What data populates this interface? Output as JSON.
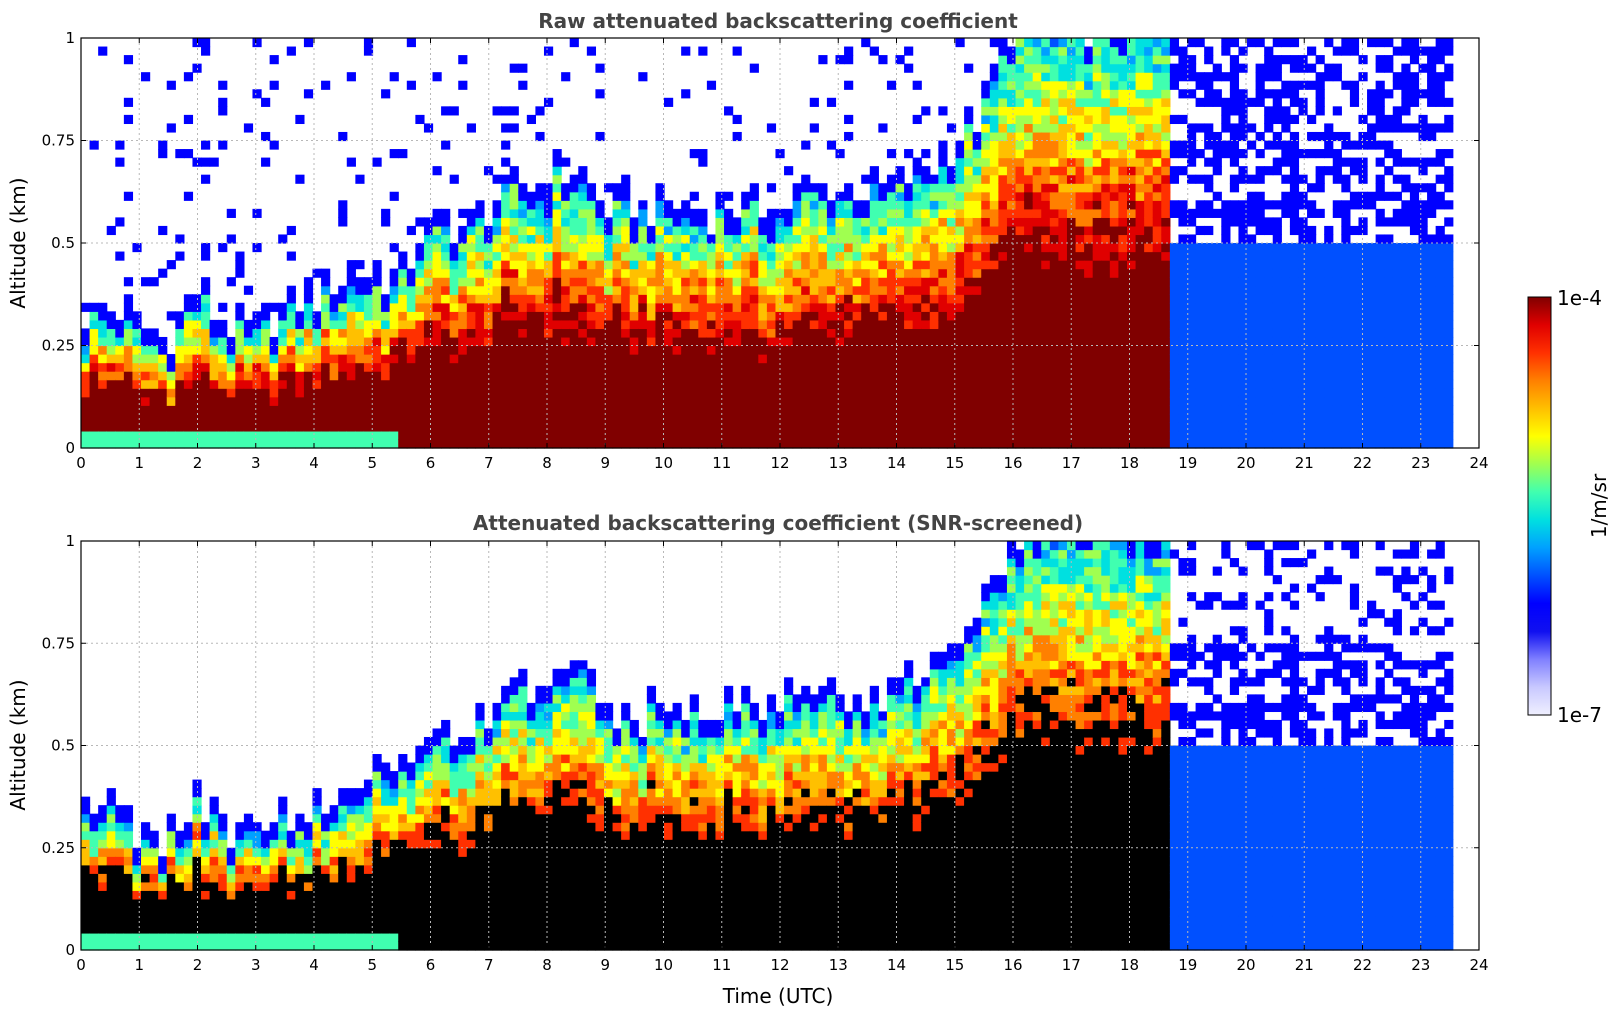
{
  "chart_data": [
    {
      "type": "heatmap",
      "title": "Raw attenuated backscattering coefficient",
      "xlabel": "",
      "ylabel": "Altitude (km)",
      "xlim": [
        0,
        24
      ],
      "ylim": [
        0,
        1
      ],
      "x_ticks": [
        "0",
        "1",
        "2",
        "3",
        "4",
        "5",
        "6",
        "7",
        "8",
        "9",
        "10",
        "11",
        "12",
        "13",
        "14",
        "15",
        "16",
        "17",
        "18",
        "19",
        "20",
        "21",
        "22",
        "23",
        "24"
      ],
      "y_ticks": [
        "0",
        "0.25",
        "0.5",
        "0.75",
        "1"
      ],
      "grid": true,
      "screened": false,
      "data_end_hour": 23.55,
      "boundary_layer_top_km": [
        [
          0,
          0.28
        ],
        [
          0.3,
          0.3
        ],
        [
          0.7,
          0.3
        ],
        [
          1,
          0.25
        ],
        [
          1.5,
          0.23
        ],
        [
          2,
          0.35
        ],
        [
          2.5,
          0.26
        ],
        [
          3,
          0.25
        ],
        [
          3.5,
          0.3
        ],
        [
          4,
          0.33
        ],
        [
          4.5,
          0.38
        ],
        [
          5,
          0.39
        ],
        [
          5.5,
          0.38
        ],
        [
          5.8,
          0.48
        ],
        [
          6.3,
          0.52
        ],
        [
          6.6,
          0.5
        ],
        [
          7,
          0.55
        ],
        [
          7.5,
          0.6
        ],
        [
          8,
          0.62
        ],
        [
          8.5,
          0.65
        ],
        [
          9,
          0.55
        ],
        [
          9.5,
          0.55
        ],
        [
          10,
          0.55
        ],
        [
          10.5,
          0.55
        ],
        [
          11,
          0.55
        ],
        [
          11.5,
          0.55
        ],
        [
          12,
          0.55
        ],
        [
          12.5,
          0.6
        ],
        [
          13,
          0.6
        ],
        [
          13.5,
          0.6
        ],
        [
          14,
          0.6
        ],
        [
          14.5,
          0.65
        ],
        [
          15,
          0.7
        ],
        [
          15.5,
          0.8
        ],
        [
          16,
          1
        ],
        [
          17,
          1
        ],
        [
          17.5,
          1
        ],
        [
          18,
          1
        ],
        [
          18.7,
          1
        ]
      ]
    },
    {
      "type": "heatmap",
      "title": "Attenuated backscattering coefficient (SNR-screened)",
      "xlabel": "Time (UTC)",
      "ylabel": "Altitude (km)",
      "xlim": [
        0,
        24
      ],
      "ylim": [
        0,
        1
      ],
      "x_ticks": [
        "0",
        "1",
        "2",
        "3",
        "4",
        "5",
        "6",
        "7",
        "8",
        "9",
        "10",
        "11",
        "12",
        "13",
        "14",
        "15",
        "16",
        "17",
        "18",
        "19",
        "20",
        "21",
        "22",
        "23",
        "24"
      ],
      "y_ticks": [
        "0",
        "0.25",
        "0.5",
        "0.75",
        "1"
      ],
      "grid": true,
      "screened": true,
      "data_end_hour": 23.55,
      "boundary_layer_top_km": [
        [
          0,
          0.28
        ],
        [
          0.3,
          0.3
        ],
        [
          0.7,
          0.3
        ],
        [
          1,
          0.25
        ],
        [
          1.5,
          0.23
        ],
        [
          2,
          0.35
        ],
        [
          2.5,
          0.26
        ],
        [
          3,
          0.25
        ],
        [
          3.5,
          0.3
        ],
        [
          4,
          0.33
        ],
        [
          4.5,
          0.38
        ],
        [
          5,
          0.39
        ],
        [
          5.5,
          0.38
        ],
        [
          5.8,
          0.48
        ],
        [
          6.3,
          0.52
        ],
        [
          6.6,
          0.5
        ],
        [
          7,
          0.55
        ],
        [
          7.5,
          0.6
        ],
        [
          8,
          0.62
        ],
        [
          8.5,
          0.65
        ],
        [
          9,
          0.55
        ],
        [
          9.5,
          0.55
        ],
        [
          10,
          0.55
        ],
        [
          10.5,
          0.55
        ],
        [
          11,
          0.55
        ],
        [
          11.5,
          0.55
        ],
        [
          12,
          0.55
        ],
        [
          12.5,
          0.6
        ],
        [
          13,
          0.6
        ],
        [
          13.5,
          0.6
        ],
        [
          14,
          0.6
        ],
        [
          14.5,
          0.65
        ],
        [
          15,
          0.7
        ],
        [
          15.5,
          0.8
        ],
        [
          16,
          1
        ],
        [
          17,
          1
        ],
        [
          17.5,
          1
        ],
        [
          18,
          1
        ],
        [
          18.7,
          1
        ]
      ]
    }
  ],
  "colorbar": {
    "label": "1/m/sr",
    "max_label": "1e-4",
    "min_label": "1e-7",
    "scale": "log",
    "colors": [
      "#f0f0ff",
      "#c8c8ff",
      "#8080ff",
      "#1010f0",
      "#0000ff",
      "#0050ff",
      "#00a0ff",
      "#00e0e0",
      "#40ffb0",
      "#a0ff50",
      "#ffff00",
      "#ffc000",
      "#ff8000",
      "#ff3000",
      "#e00000",
      "#800000"
    ]
  }
}
